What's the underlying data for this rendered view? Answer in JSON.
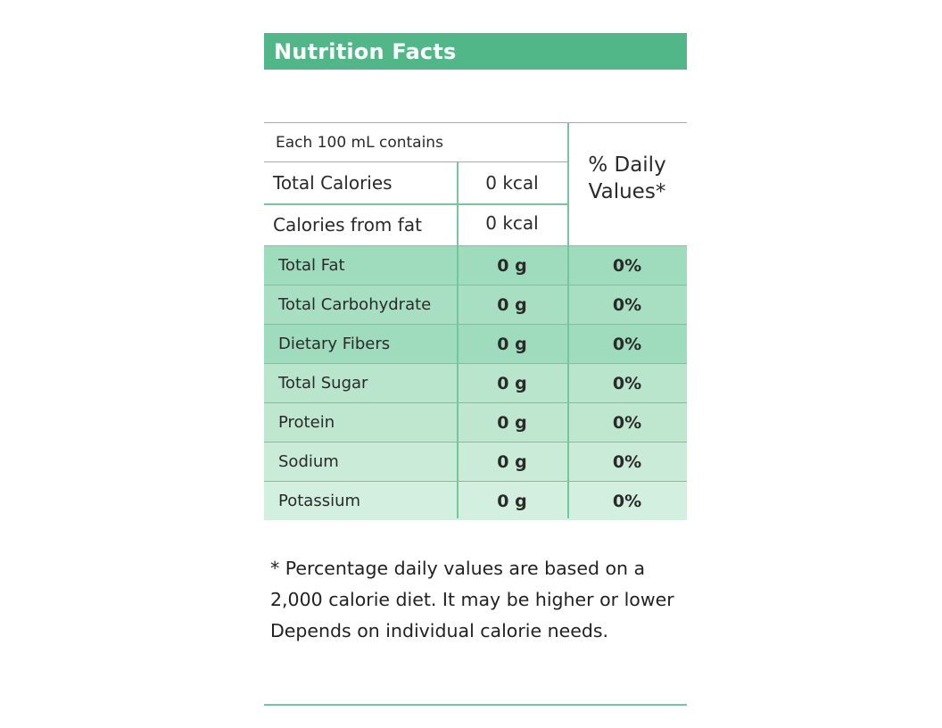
{
  "header": {
    "title": "Nutrition Facts"
  },
  "table": {
    "intro": "Each 100 mL contains",
    "daily_values_heading": {
      "line1": "% Daily",
      "line2": "Values*"
    },
    "calories": [
      {
        "label": "Total Calories",
        "value": "0 kcal"
      },
      {
        "label": "Calories from fat",
        "value": "0 kcal"
      }
    ],
    "nutrients": [
      {
        "name": "Total Fat",
        "amount": "0 g",
        "percent": "0%"
      },
      {
        "name": "Total Carbohydrate",
        "amount": "0 g",
        "percent": "0%"
      },
      {
        "name": "Dietary Fibers",
        "amount": "0 g",
        "percent": "0%"
      },
      {
        "name": "Total Sugar",
        "amount": "0 g",
        "percent": "0%"
      },
      {
        "name": "Protein",
        "amount": "0 g",
        "percent": "0%"
      },
      {
        "name": "Sodium",
        "amount": "0 g",
        "percent": "0%"
      },
      {
        "name": "Potassium",
        "amount": "0 g",
        "percent": "0%"
      }
    ]
  },
  "footnote": {
    "line1": "* Percentage daily values are based on a",
    "line2": "2,000 calorie diet. It may be higher or lower",
    "line3": "Depends on individual calorie needs."
  },
  "colors": {
    "header_bg": "#52b788",
    "rule": "#74c69d",
    "row_shades": [
      "#9fdbbd",
      "#a8dec2",
      "#9fdbbd",
      "#b9e5cd",
      "#bfe7d0",
      "#c9ebd7",
      "#d3efdf"
    ]
  }
}
